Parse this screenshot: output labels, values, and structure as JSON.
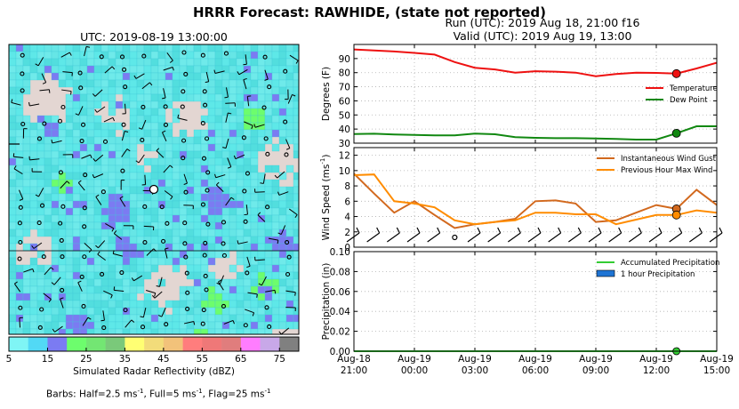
{
  "header": {
    "title": "HRRR Forecast: RAWHIDE, (state not reported)",
    "run": "Run (UTC): 2019 Aug 18, 21:00 f16",
    "valid": "Valid (UTC): 2019 Aug 19, 13:00"
  },
  "map": {
    "title": "UTC: 2019-08-19 13:00:00",
    "colorbar": {
      "label": "Simulated Radar Reflectivity (dBZ)",
      "ticks": [
        "5",
        "15",
        "25",
        "35",
        "45",
        "55",
        "65",
        "75"
      ],
      "colors": [
        "#7ff5f5",
        "#52d9f5",
        "#7b7bf2",
        "#6dfd6d",
        "#73e673",
        "#7ac97a",
        "#ffff73",
        "#f2dc7a",
        "#f2c27a",
        "#ff7d7d",
        "#ef7878",
        "#e07d7d",
        "#ff7dff",
        "#c8a8e8",
        "#808080"
      ]
    },
    "footnote": {
      "prefix": "Barbs: Half=2.5 ms",
      "mid1": ", Full=5 ms",
      "mid2": ", Flag=25 ms",
      "exp": "-1"
    }
  },
  "chart_data": [
    {
      "type": "line",
      "ylabel": "Degrees (F)",
      "ylim": [
        30,
        100
      ],
      "yticks": [
        "30",
        "40",
        "50",
        "60",
        "70",
        "80",
        "90"
      ],
      "x_hours": [
        0,
        1,
        2,
        3,
        4,
        5,
        6,
        7,
        8,
        9,
        10,
        11,
        12,
        13,
        14,
        15,
        16,
        17,
        18
      ],
      "series": [
        {
          "name": "Temperature",
          "color": "#ee1111",
          "values": [
            96.5,
            95.8,
            95.0,
            94.0,
            92.8,
            87.5,
            83.5,
            82.3,
            80.0,
            81.0,
            80.7,
            80.0,
            77.5,
            79.0,
            80.0,
            79.8,
            79.3,
            83.0,
            87.0
          ]
        },
        {
          "name": "Dew Point",
          "color": "#118811",
          "values": [
            36.5,
            36.7,
            36.2,
            35.8,
            35.5,
            35.5,
            36.8,
            36.3,
            34.3,
            33.8,
            33.5,
            33.5,
            33.3,
            33.0,
            32.5,
            32.5,
            37.0,
            42.0,
            42.0
          ]
        }
      ],
      "marker_hour": 16,
      "legend": "right"
    },
    {
      "type": "line",
      "ylabel": "Wind Speed (ms",
      "ylabel_exp": "-1",
      "ylabel_close": ")",
      "ylim": [
        0,
        13
      ],
      "yticks": [
        "0",
        "2",
        "4",
        "6",
        "8",
        "10",
        "12"
      ],
      "x_hours": [
        0,
        1,
        2,
        3,
        4,
        5,
        6,
        7,
        8,
        9,
        10,
        11,
        12,
        13,
        14,
        15,
        16,
        17,
        18
      ],
      "series": [
        {
          "name": "Instantaneous Wind Gust",
          "color": "#d2691e",
          "values": [
            9.6,
            7.0,
            4.5,
            6.0,
            4.2,
            2.5,
            3.0,
            3.3,
            3.7,
            6.0,
            6.1,
            5.7,
            3.3,
            3.5,
            4.5,
            5.5,
            5.0,
            7.5,
            5.5
          ]
        },
        {
          "name": "Previous Hour Max Wind",
          "color": "#ff8c00",
          "values": [
            9.4,
            9.5,
            6.0,
            5.7,
            5.2,
            3.5,
            3.0,
            3.3,
            3.5,
            4.5,
            4.5,
            4.3,
            4.3,
            3.0,
            3.6,
            4.2,
            4.2,
            4.8,
            4.5
          ]
        }
      ],
      "marker_hour": 16,
      "legend": "top-right"
    },
    {
      "type": "bar",
      "ylabel": "Precipitation (in)",
      "ylim": [
        0,
        0.1
      ],
      "yticks": [
        "0.00",
        "0.02",
        "0.04",
        "0.06",
        "0.08",
        "0.10"
      ],
      "x_hours": [
        0,
        1,
        2,
        3,
        4,
        5,
        6,
        7,
        8,
        9,
        10,
        11,
        12,
        13,
        14,
        15,
        16,
        17,
        18
      ],
      "series": [
        {
          "name": "Accumulated Precipitation",
          "color": "#33cc33",
          "values": [
            0,
            0,
            0,
            0,
            0,
            0,
            0,
            0,
            0,
            0,
            0,
            0,
            0,
            0,
            0,
            0,
            0,
            0,
            0
          ]
        },
        {
          "name": "1 hour Precipitation",
          "color": "#1e74d4",
          "values": [
            0,
            0,
            0,
            0,
            0,
            0,
            0,
            0,
            0,
            0,
            0,
            0,
            0,
            0,
            0,
            0,
            0,
            0,
            0
          ]
        }
      ],
      "marker_hour": 16,
      "legend": "top-right"
    }
  ],
  "xaxis": {
    "ticks": [
      {
        "top": "Aug-18",
        "bottom": "21:00"
      },
      {
        "top": "Aug-19",
        "bottom": "00:00"
      },
      {
        "top": "Aug-19",
        "bottom": "03:00"
      },
      {
        "top": "Aug-19",
        "bottom": "06:00"
      },
      {
        "top": "Aug-19",
        "bottom": "09:00"
      },
      {
        "top": "Aug-19",
        "bottom": "12:00"
      },
      {
        "top": "Aug-19",
        "bottom": "15:00"
      }
    ],
    "tick_hours": [
      0,
      3,
      6,
      9,
      12,
      15,
      18
    ]
  }
}
